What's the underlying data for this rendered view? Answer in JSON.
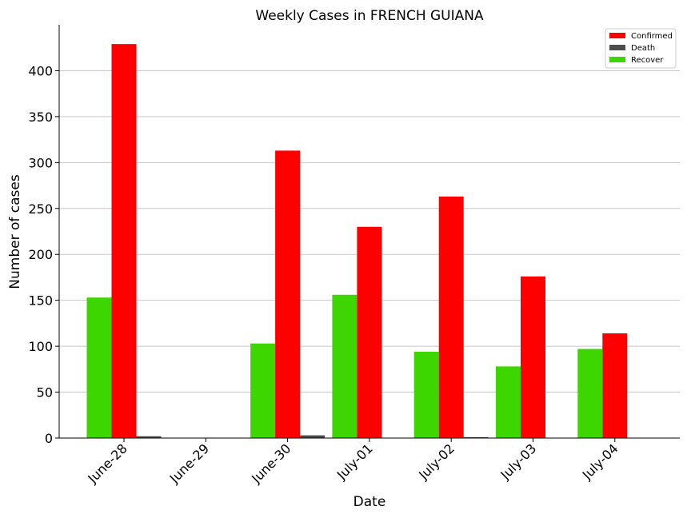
{
  "chart_data": {
    "type": "bar",
    "title": "Weekly Cases in FRENCH GUIANA",
    "xlabel": "Date",
    "ylabel": "Number of cases",
    "categories": [
      "June-28",
      "June-29",
      "June-30",
      "July-01",
      "July-02",
      "July-03",
      "July-04"
    ],
    "series": [
      {
        "name": "Recover",
        "color": "#3dd600",
        "values": [
          153,
          0,
          103,
          156,
          94,
          78,
          97
        ]
      },
      {
        "name": "Confirmed",
        "color": "#ff0000",
        "values": [
          429,
          0,
          313,
          230,
          263,
          176,
          114
        ]
      },
      {
        "name": "Death",
        "color": "#4d4d4d",
        "values": [
          2,
          0,
          3,
          0,
          1,
          0,
          0
        ]
      }
    ],
    "legend_order": [
      "Confirmed",
      "Death",
      "Recover"
    ],
    "ylim": [
      0,
      450
    ],
    "yticks": [
      0,
      50,
      100,
      150,
      200,
      250,
      300,
      350,
      400
    ],
    "grid": "horizontal",
    "legend_position": "top-right"
  }
}
